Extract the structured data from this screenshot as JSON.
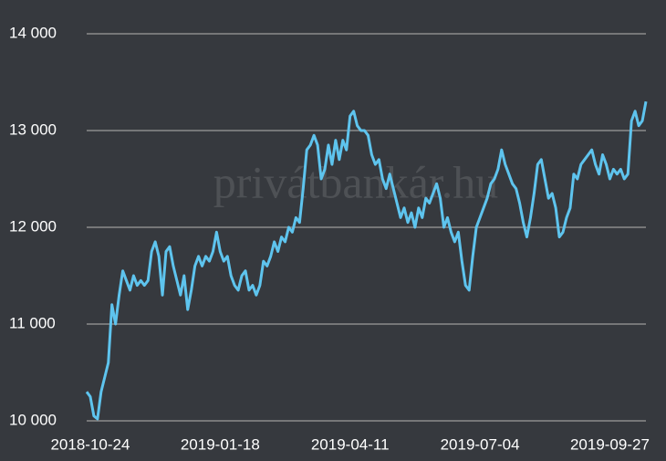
{
  "chart_data": {
    "type": "line",
    "watermark": "privátbankár.hu",
    "categories": [
      null,
      "2018-10-24",
      null,
      null,
      null,
      null,
      null,
      null,
      null,
      null,
      null,
      null,
      null,
      null,
      null,
      null,
      null,
      null,
      null,
      null,
      null,
      null,
      null,
      null,
      null,
      null,
      null,
      null,
      null,
      null,
      null,
      null,
      null,
      null,
      null,
      null,
      null,
      "2019-01-18",
      null,
      null,
      null,
      null,
      null,
      null,
      null,
      null,
      null,
      null,
      null,
      null,
      null,
      null,
      null,
      null,
      null,
      null,
      null,
      null,
      null,
      null,
      null,
      null,
      null,
      null,
      null,
      null,
      null,
      null,
      null,
      null,
      null,
      null,
      null,
      "2019-04-11",
      null,
      null,
      null,
      null,
      null,
      null,
      null,
      null,
      null,
      null,
      null,
      null,
      null,
      null,
      null,
      null,
      null,
      null,
      null,
      null,
      null,
      null,
      null,
      null,
      null,
      null,
      null,
      null,
      null,
      null,
      null,
      null,
      null,
      null,
      null,
      "2019-07-04",
      null,
      null,
      null,
      null,
      null,
      null,
      null,
      null,
      null,
      null,
      null,
      null,
      null,
      null,
      null,
      null,
      null,
      null,
      null,
      null,
      null,
      null,
      null,
      null,
      null,
      null,
      null,
      null,
      null,
      null,
      null,
      null,
      null,
      null,
      null,
      "2019-09-27",
      null,
      null,
      null,
      null,
      null,
      null,
      null,
      null,
      null,
      null
    ],
    "values": [
      10300,
      10250,
      10050,
      10020,
      10300,
      10450,
      10600,
      11200,
      11000,
      11300,
      11550,
      11450,
      11350,
      11500,
      11400,
      11450,
      11400,
      11450,
      11750,
      11850,
      11700,
      11300,
      11750,
      11800,
      11600,
      11450,
      11300,
      11500,
      11150,
      11350,
      11600,
      11700,
      11600,
      11700,
      11650,
      11750,
      11950,
      11750,
      11650,
      11700,
      11500,
      11400,
      11350,
      11500,
      11550,
      11350,
      11400,
      11300,
      11400,
      11650,
      11600,
      11700,
      11850,
      11750,
      11900,
      11850,
      12000,
      11950,
      12100,
      12050,
      12400,
      12800,
      12850,
      12950,
      12850,
      12500,
      12600,
      12850,
      12650,
      12900,
      12700,
      12900,
      12800,
      13150,
      13200,
      13050,
      13000,
      13000,
      12950,
      12750,
      12650,
      12700,
      12500,
      12400,
      12550,
      12400,
      12250,
      12100,
      12200,
      12050,
      12150,
      12000,
      12200,
      12100,
      12300,
      12250,
      12350,
      12450,
      12300,
      12000,
      12100,
      11950,
      11850,
      11950,
      11650,
      11400,
      11350,
      11700,
      12000,
      12100,
      12200,
      12300,
      12450,
      12500,
      12600,
      12800,
      12650,
      12550,
      12450,
      12400,
      12250,
      12050,
      11900,
      12100,
      12350,
      12650,
      12700,
      12500,
      12300,
      12350,
      12200,
      11900,
      11950,
      12100,
      12200,
      12550,
      12500,
      12650,
      12700,
      12750,
      12800,
      12650,
      12550,
      12750,
      12650,
      12500,
      12600,
      12550,
      12600,
      12500,
      12550,
      13100,
      13200,
      13050,
      13100,
      13300
    ],
    "color": "#5ec4ee",
    "ylim": [
      10000,
      14000
    ],
    "yticks": [
      {
        "value": 10000,
        "label": "10 000"
      },
      {
        "value": 11000,
        "label": "11 000"
      },
      {
        "value": 12000,
        "label": "12 000"
      },
      {
        "value": 13000,
        "label": "13 000"
      },
      {
        "value": 14000,
        "label": "14 000"
      }
    ],
    "grid": true
  }
}
